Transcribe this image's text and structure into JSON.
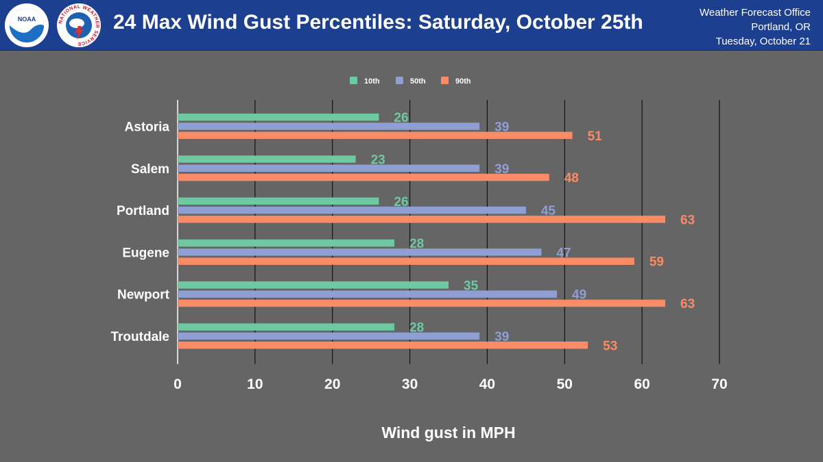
{
  "header": {
    "title": "24 Max Wind Gust Percentiles: Saturday, October 25th",
    "office_line1": "Weather Forecast Office",
    "office_line2": "Portland, OR",
    "office_line3": "Tuesday, October 21"
  },
  "logos": {
    "noaa_text": "NOAA",
    "nws_ring_text": "NATIONAL WEATHER SERVICE"
  },
  "colors": {
    "header_bg": "#1d3f8f",
    "page_bg": "#656565",
    "p10": "#6ec9a2",
    "p50": "#8f9ed3",
    "p90": "#f98c66"
  },
  "chart_data": {
    "type": "bar",
    "orientation": "horizontal",
    "title": "24 Max Wind Gust Percentiles: Saturday, October 25th",
    "xlabel": "Wind gust in MPH",
    "ylabel": "",
    "categories": [
      "Astoria",
      "Salem",
      "Portland",
      "Eugene",
      "Newport",
      "Troutdale"
    ],
    "series": [
      {
        "name": "10th",
        "color": "#6ec9a2",
        "values": [
          26,
          23,
          26,
          28,
          35,
          28
        ]
      },
      {
        "name": "50th",
        "color": "#8f9ed3",
        "values": [
          39,
          39,
          45,
          47,
          49,
          39
        ]
      },
      {
        "name": "90th",
        "color": "#f98c66",
        "values": [
          51,
          48,
          63,
          59,
          63,
          53
        ]
      }
    ],
    "xlim": [
      0,
      70
    ],
    "xticks": [
      0,
      10,
      20,
      30,
      40,
      50,
      60,
      70
    ],
    "grid": "vertical",
    "legend_position": "top-center",
    "data_labels": true
  }
}
